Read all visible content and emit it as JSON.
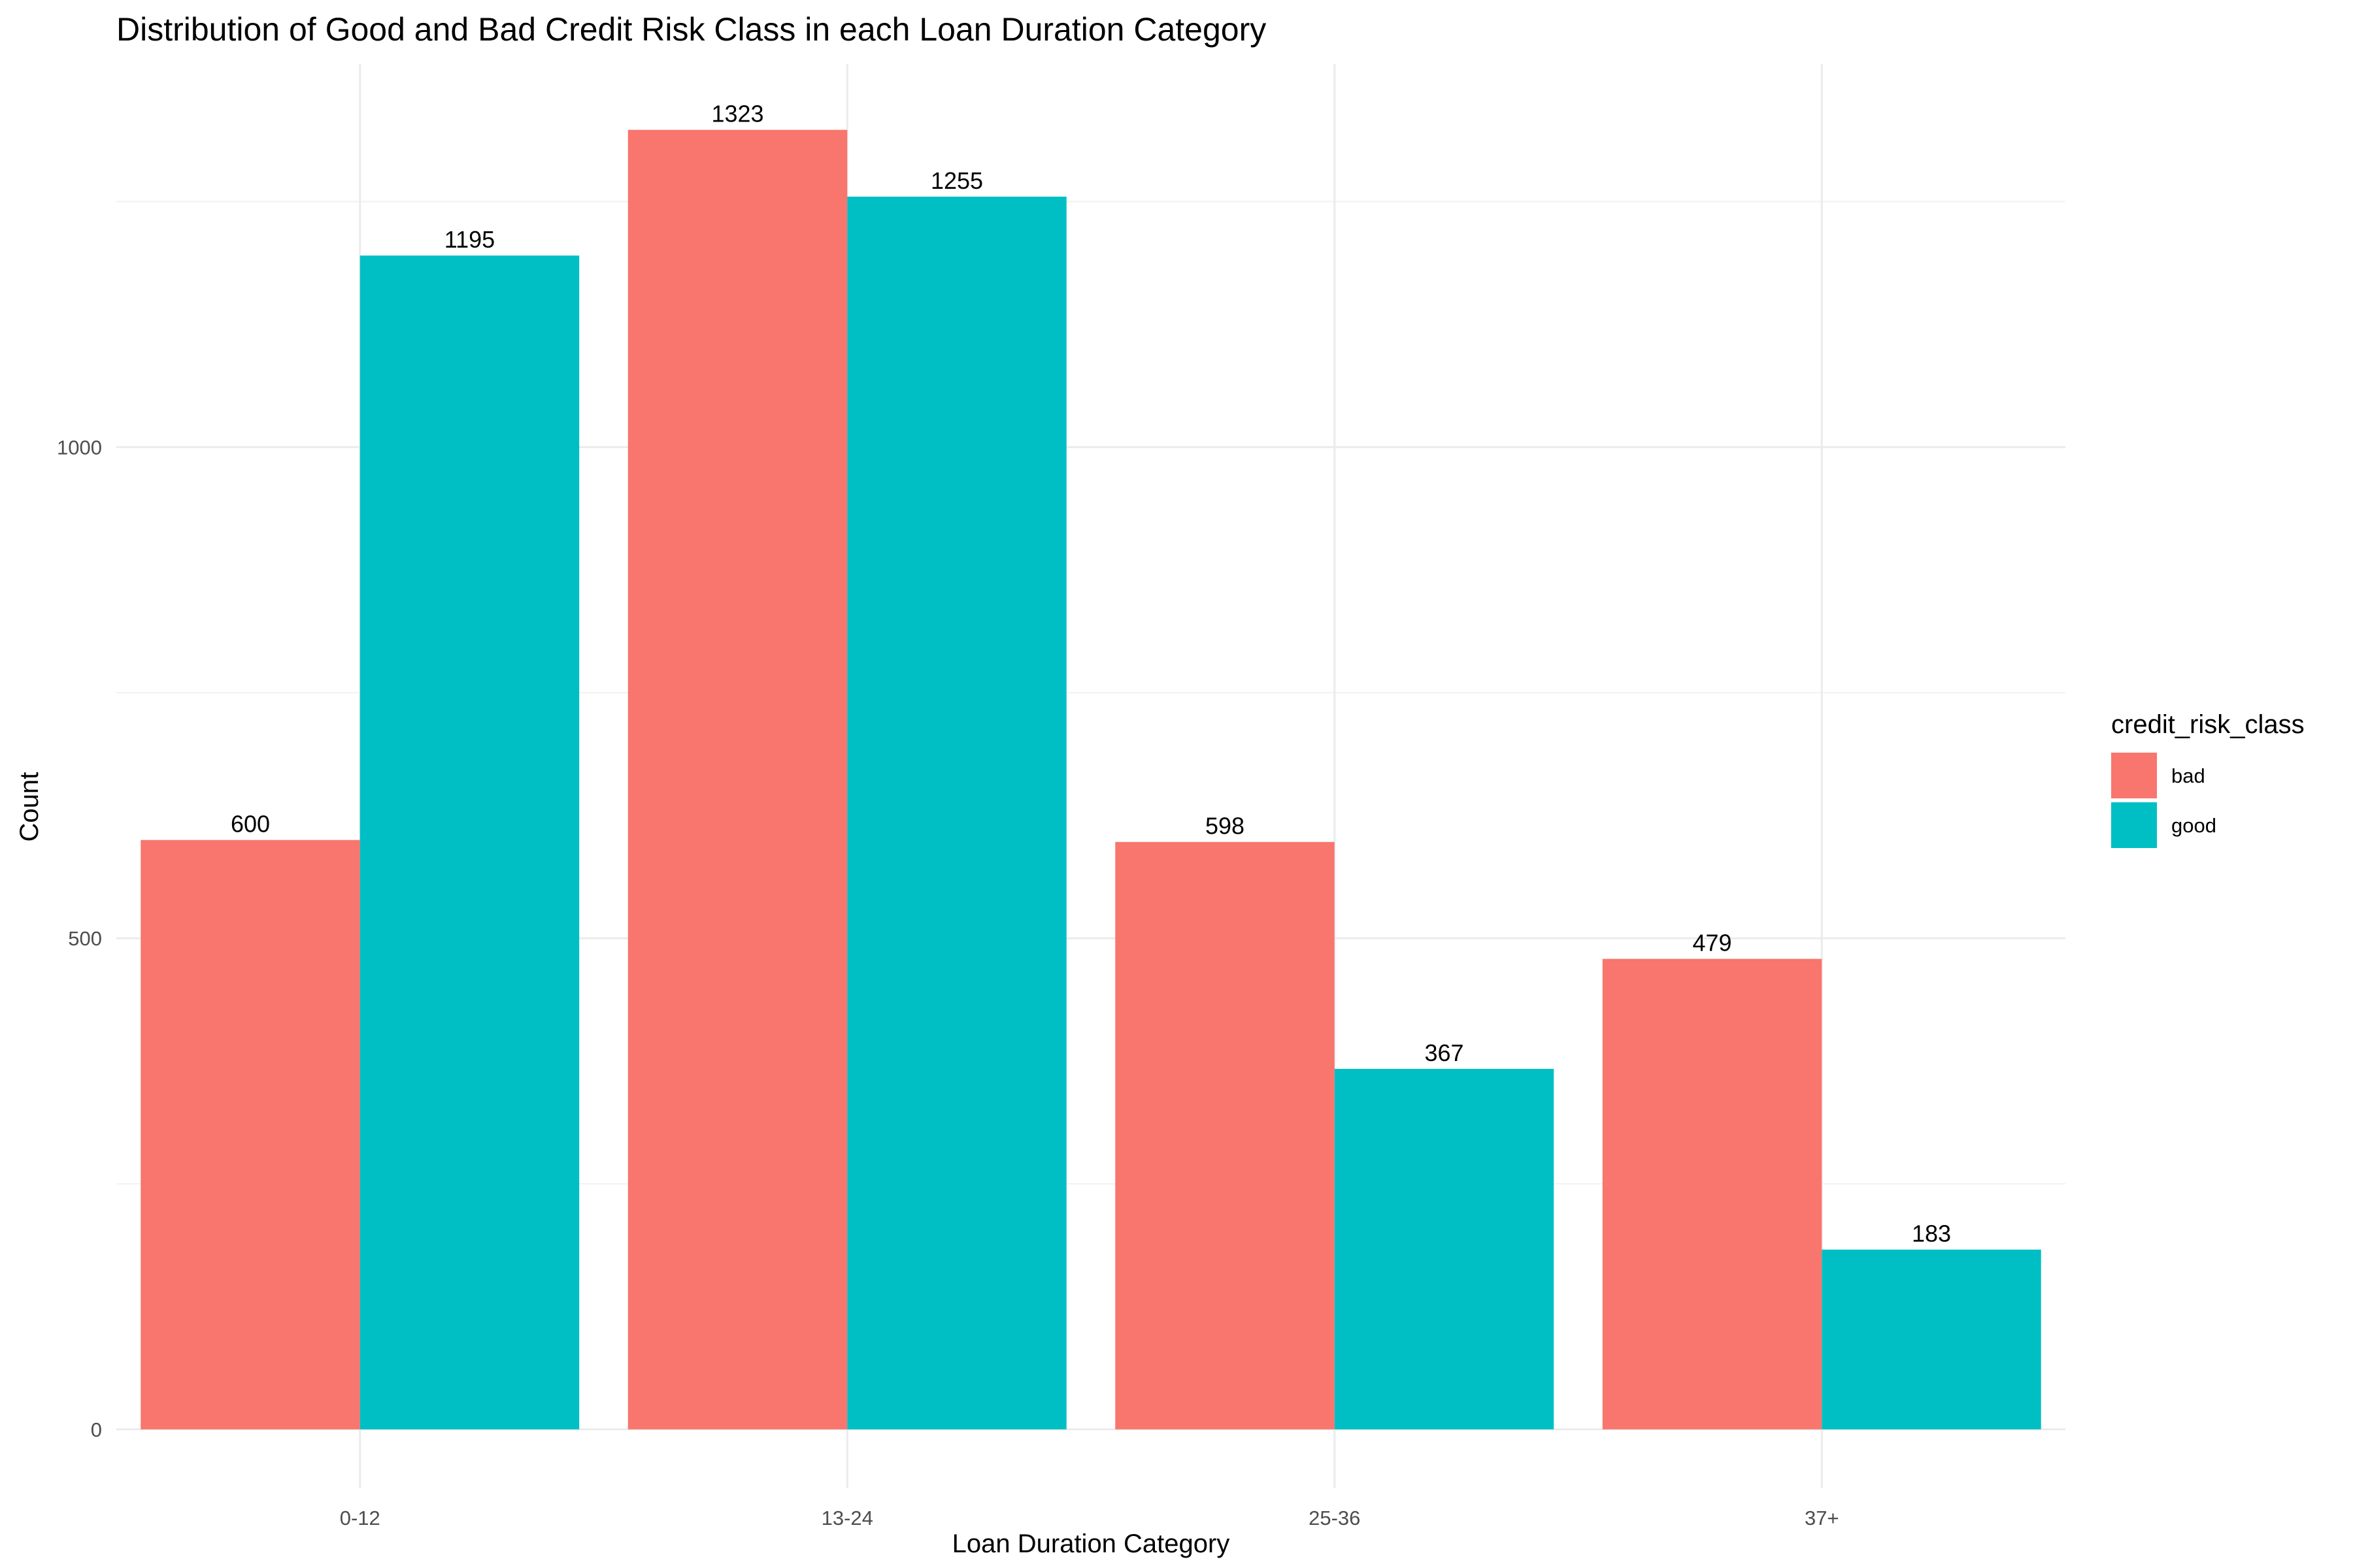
{
  "chart_data": {
    "type": "bar",
    "title": "Distribution of Good and Bad Credit Risk Class in each Loan Duration Category",
    "xlabel": "Loan Duration Category",
    "ylabel": "Count",
    "categories": [
      "0-12",
      "13-24",
      "25-36",
      "37+"
    ],
    "series": [
      {
        "name": "bad",
        "color": "#F8766D",
        "values": [
          600,
          1323,
          598,
          479
        ]
      },
      {
        "name": "good",
        "color": "#00BFC4",
        "values": [
          1195,
          1255,
          367,
          183
        ]
      }
    ],
    "ylim": [
      -60,
      1390
    ],
    "yticks": [
      0,
      500,
      1000
    ],
    "ytick_labels": [
      "0",
      "500",
      "1000"
    ],
    "grid": true,
    "legend": {
      "title": "credit_risk_class",
      "position": "right"
    }
  }
}
